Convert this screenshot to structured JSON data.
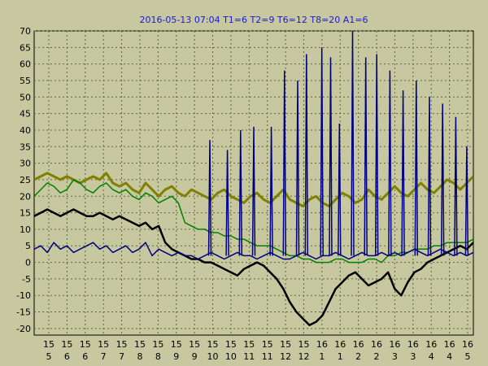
{
  "chart_data": {
    "type": "line",
    "title": "2016-05-13 07:04  T1=6 T2=9 T6=12 T8=20 A1=6",
    "xlabel": "",
    "ylabel": "",
    "ylim": [
      -22,
      70
    ],
    "yticks": [
      70,
      65,
      60,
      55,
      50,
      45,
      40,
      35,
      30,
      25,
      20,
      15,
      10,
      5,
      0,
      -5,
      -10,
      -15,
      -20
    ],
    "grid": true,
    "legend": "none",
    "x_ticks": [
      {
        "top": "15",
        "bottom": "5"
      },
      {
        "top": "15",
        "bottom": "6"
      },
      {
        "top": "15",
        "bottom": "6"
      },
      {
        "top": "15",
        "bottom": "7"
      },
      {
        "top": "15",
        "bottom": "7"
      },
      {
        "top": "15",
        "bottom": "8"
      },
      {
        "top": "15",
        "bottom": "8"
      },
      {
        "top": "15",
        "bottom": "9"
      },
      {
        "top": "15",
        "bottom": "9"
      },
      {
        "top": "15",
        "bottom": "10"
      },
      {
        "top": "15",
        "bottom": "10"
      },
      {
        "top": "15",
        "bottom": "11"
      },
      {
        "top": "15",
        "bottom": "11"
      },
      {
        "top": "15",
        "bottom": "12"
      },
      {
        "top": "15",
        "bottom": "12"
      },
      {
        "top": "16",
        "bottom": "1"
      },
      {
        "top": "16",
        "bottom": "1"
      },
      {
        "top": "16",
        "bottom": "2"
      },
      {
        "top": "16",
        "bottom": "2"
      },
      {
        "top": "16",
        "bottom": "3"
      },
      {
        "top": "16",
        "bottom": "3"
      },
      {
        "top": "16",
        "bottom": "4"
      },
      {
        "top": "16",
        "bottom": "4"
      },
      {
        "top": "16",
        "bottom": "5"
      }
    ],
    "series": [
      {
        "color": "#808000",
        "values": [
          25,
          26,
          27,
          26,
          25,
          26,
          25,
          24,
          25,
          26,
          25,
          27,
          24,
          23,
          24,
          22,
          21,
          24,
          22,
          20,
          22,
          23,
          21,
          20,
          22,
          21,
          20,
          19,
          21,
          22,
          20,
          19,
          18,
          20,
          21,
          19,
          18,
          20,
          22,
          19,
          18,
          17,
          19,
          20,
          18,
          17,
          19,
          21,
          20,
          18,
          19,
          22,
          20,
          19,
          21,
          23,
          21,
          20,
          22,
          24,
          22,
          21,
          23,
          25,
          24,
          22,
          24,
          26
        ]
      },
      {
        "color": "#008000",
        "values": [
          20,
          22,
          24,
          23,
          21,
          22,
          25,
          24,
          22,
          21,
          23,
          24,
          22,
          21,
          22,
          20,
          19,
          21,
          20,
          18,
          19,
          20,
          18,
          12,
          11,
          10,
          10,
          9,
          9,
          8,
          8,
          7,
          7,
          6,
          5,
          5,
          5,
          4,
          3,
          2,
          2,
          1,
          1,
          0,
          0,
          0,
          1,
          1,
          0,
          0,
          0,
          1,
          1,
          0,
          2,
          2,
          3,
          3,
          4,
          4,
          4,
          5,
          5,
          6,
          6,
          6,
          6,
          7
        ]
      },
      {
        "color": "#000000",
        "values": [
          14,
          15,
          16,
          15,
          14,
          15,
          16,
          15,
          14,
          14,
          15,
          14,
          13,
          14,
          13,
          12,
          11,
          12,
          10,
          11,
          6,
          4,
          3,
          2,
          1,
          1,
          0,
          0,
          -1,
          -2,
          -3,
          -4,
          -2,
          -1,
          0,
          -1,
          -3,
          -5,
          -8,
          -12,
          -15,
          -17,
          -19,
          -18,
          -16,
          -12,
          -8,
          -6,
          -4,
          -3,
          -5,
          -7,
          -6,
          -5,
          -3,
          -8,
          -10,
          -6,
          -3,
          -2,
          0,
          1,
          2,
          3,
          4,
          5,
          4,
          6
        ]
      },
      {
        "color": "#000080",
        "values": [
          4,
          5,
          3,
          6,
          4,
          5,
          3,
          4,
          5,
          6,
          4,
          5,
          3,
          4,
          5,
          3,
          4,
          6,
          2,
          4,
          3,
          2,
          3,
          2,
          2,
          1,
          2,
          3,
          2,
          1,
          2,
          3,
          2,
          2,
          1,
          2,
          3,
          2,
          1,
          1,
          2,
          3,
          2,
          1,
          2,
          2,
          3,
          2,
          1,
          2,
          3,
          2,
          2,
          3,
          2,
          3,
          2,
          3,
          4,
          3,
          2,
          3,
          4,
          3,
          2,
          3,
          2,
          3
        ]
      }
    ],
    "spike_peaks": [
      {
        "series": 3,
        "at": 0.4,
        "value": 37
      },
      {
        "series": 3,
        "at": 0.44,
        "value": 34
      },
      {
        "series": 3,
        "at": 0.47,
        "value": 40
      },
      {
        "series": 3,
        "at": 0.5,
        "value": 41
      },
      {
        "series": 3,
        "at": 0.54,
        "value": 41
      },
      {
        "series": 3,
        "at": 0.57,
        "value": 58
      },
      {
        "series": 3,
        "at": 0.6,
        "value": 55
      },
      {
        "series": 3,
        "at": 0.62,
        "value": 63
      },
      {
        "series": 3,
        "at": 0.655,
        "value": 65
      },
      {
        "series": 3,
        "at": 0.675,
        "value": 62
      },
      {
        "series": 3,
        "at": 0.695,
        "value": 42
      },
      {
        "series": 3,
        "at": 0.725,
        "value": 70
      },
      {
        "series": 3,
        "at": 0.755,
        "value": 62
      },
      {
        "series": 3,
        "at": 0.78,
        "value": 63
      },
      {
        "series": 3,
        "at": 0.81,
        "value": 58
      },
      {
        "series": 3,
        "at": 0.84,
        "value": 52
      },
      {
        "series": 3,
        "at": 0.87,
        "value": 55
      },
      {
        "series": 3,
        "at": 0.9,
        "value": 50
      },
      {
        "series": 3,
        "at": 0.93,
        "value": 48
      },
      {
        "series": 3,
        "at": 0.96,
        "value": 44
      },
      {
        "series": 3,
        "at": 0.985,
        "value": 35
      }
    ]
  }
}
